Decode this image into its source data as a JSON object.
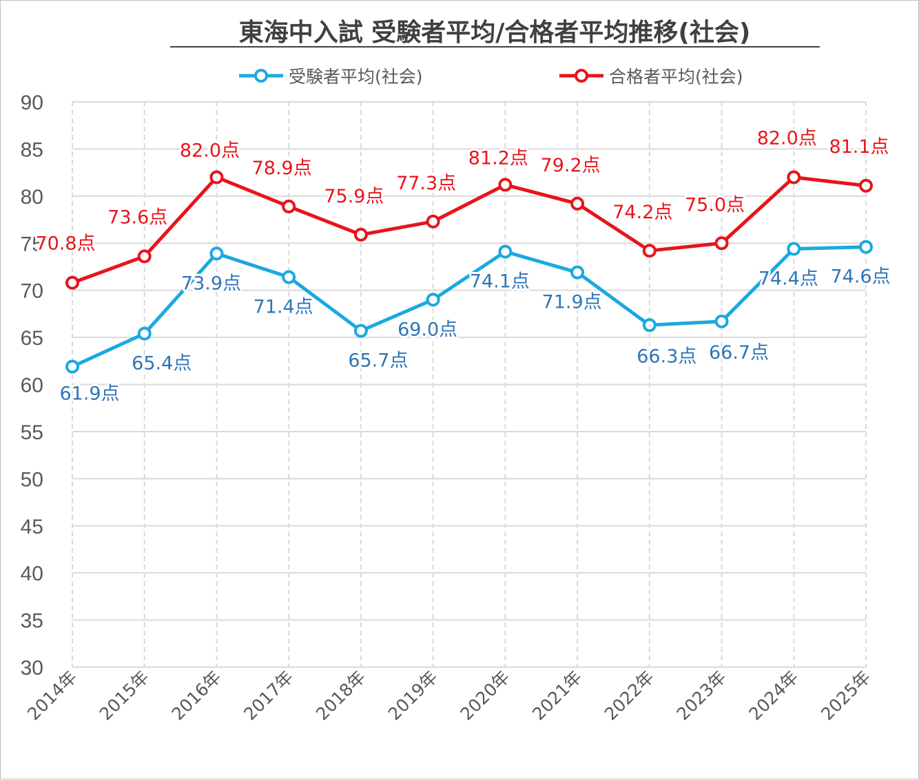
{
  "chart_data": {
    "type": "line",
    "title": "東海中入試 受験者平均/合格者平均推移(社会)",
    "categories": [
      "2014年",
      "2015年",
      "2016年",
      "2017年",
      "2018年",
      "2019年",
      "2020年",
      "2021年",
      "2022年",
      "2023年",
      "2024年",
      "2025年"
    ],
    "ylim": [
      30,
      90
    ],
    "yticks": [
      "30",
      "35",
      "40",
      "45",
      "50",
      "55",
      "60",
      "65",
      "70",
      "75",
      "80",
      "85",
      "90"
    ],
    "grid": true,
    "legend_position": "top",
    "series": [
      {
        "name": "受験者平均(社会)",
        "color": "#1aa9df",
        "label_color": "#2e75b6",
        "values": [
          61.9,
          65.4,
          73.9,
          71.4,
          65.7,
          69.0,
          74.1,
          71.9,
          66.3,
          66.7,
          74.4,
          74.6
        ],
        "labels": [
          "61.9点",
          "65.4点",
          "73.9点",
          "71.4点",
          "65.7点",
          "69.0点",
          "74.1点",
          "71.9点",
          "66.3点",
          "66.7点",
          "74.4点",
          "74.6点"
        ]
      },
      {
        "name": "合格者平均(社会)",
        "color": "#e8141b",
        "label_color": "#e8141b",
        "values": [
          70.8,
          73.6,
          82.0,
          78.9,
          75.9,
          77.3,
          81.2,
          79.2,
          74.2,
          75.0,
          82.0,
          81.1
        ],
        "labels": [
          "70.8点",
          "73.6点",
          "82.0点",
          "78.9点",
          "75.9点",
          "77.3点",
          "81.2点",
          "79.2点",
          "74.2点",
          "75.0点",
          "82.0点",
          "81.1点"
        ]
      }
    ]
  }
}
